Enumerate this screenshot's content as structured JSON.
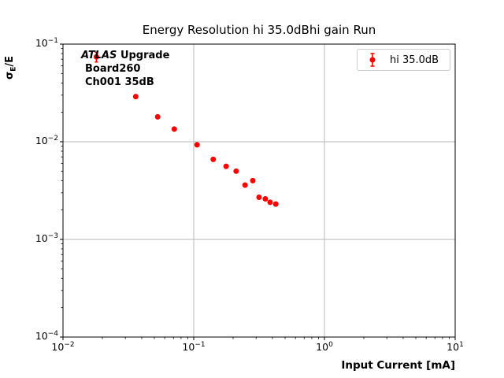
{
  "figure_title": "Energy Resolution hi 35.0dBhi gain Run",
  "annotation": {
    "experiment": "ATLAS",
    "experiment_suffix": "Upgrade",
    "board": "Board260",
    "channel": "Ch001 35dB"
  },
  "chart_data": {
    "type": "scatter",
    "title": "Energy Resolution hi 35.0dBhi gain Run",
    "xlabel": "Input Current [mA]",
    "ylabel": "σ_E/E",
    "ylabel_parts": {
      "sigma": "σ",
      "sub": "E",
      "rest": "/E"
    },
    "xscale": "log",
    "yscale": "log",
    "xlim": [
      0.01,
      10
    ],
    "ylim": [
      0.0001,
      0.1
    ],
    "xticks": [
      0.01,
      0.1,
      1,
      10
    ],
    "yticks": [
      0.1,
      0.01,
      0.001,
      0.0001
    ],
    "grid": true,
    "grid_color": "#b9b9b9",
    "legend_position": "upper right",
    "series": [
      {
        "name": "hi 35.0dB",
        "color": "#ff0000",
        "marker": "circle-errorbar",
        "points": [
          {
            "x": 0.018,
            "y": 0.074,
            "yerr": 0.0085
          },
          {
            "x": 0.036,
            "y": 0.029
          },
          {
            "x": 0.053,
            "y": 0.018
          },
          {
            "x": 0.071,
            "y": 0.0135
          },
          {
            "x": 0.106,
            "y": 0.0093
          },
          {
            "x": 0.141,
            "y": 0.0066
          },
          {
            "x": 0.177,
            "y": 0.0056
          },
          {
            "x": 0.211,
            "y": 0.005
          },
          {
            "x": 0.247,
            "y": 0.0036
          },
          {
            "x": 0.283,
            "y": 0.004
          },
          {
            "x": 0.316,
            "y": 0.0027
          },
          {
            "x": 0.353,
            "y": 0.0026
          },
          {
            "x": 0.384,
            "y": 0.0024
          },
          {
            "x": 0.424,
            "y": 0.0023
          }
        ]
      }
    ]
  }
}
